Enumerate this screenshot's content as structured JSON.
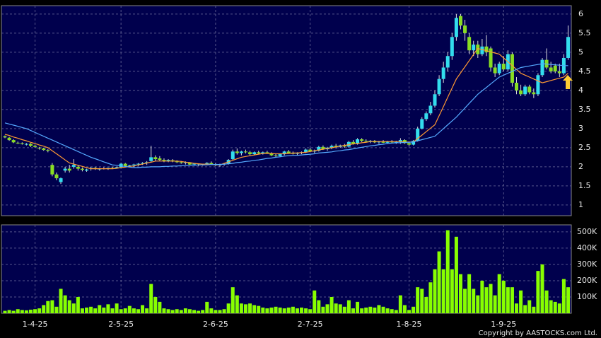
{
  "chart_data": {
    "type": "candlestick",
    "categories": [
      null,
      null,
      null,
      null,
      null,
      null,
      null,
      "1-4-25",
      null,
      null,
      null,
      null,
      null,
      null,
      null,
      null,
      null,
      null,
      null,
      null,
      null,
      null,
      null,
      null,
      null,
      null,
      null,
      "2-5-25",
      null,
      null,
      null,
      null,
      null,
      null,
      null,
      null,
      null,
      null,
      null,
      null,
      null,
      null,
      null,
      null,
      null,
      null,
      null,
      null,
      null,
      "2-6-25",
      null,
      null,
      null,
      null,
      null,
      null,
      null,
      null,
      null,
      null,
      null,
      null,
      null,
      null,
      null,
      null,
      null,
      null,
      null,
      null,
      null,
      "2-7-25",
      null,
      null,
      null,
      null,
      null,
      null,
      null,
      null,
      null,
      null,
      null,
      null,
      null,
      null,
      null,
      null,
      null,
      null,
      null,
      null,
      null,
      null,
      "1-8-25",
      null,
      null,
      null,
      null,
      null,
      null,
      null,
      null,
      null,
      null,
      null,
      null,
      null,
      null,
      null,
      null,
      null,
      null,
      null,
      null,
      null,
      "1-9-25",
      null,
      null,
      null,
      null,
      null,
      null,
      null,
      null,
      null,
      null,
      null,
      null,
      null,
      null,
      null
    ],
    "candles": [
      [
        2.8,
        2.82,
        2.75,
        2.77
      ],
      [
        2.76,
        2.78,
        2.68,
        2.7
      ],
      [
        2.7,
        2.72,
        2.62,
        2.64
      ],
      [
        2.63,
        2.66,
        2.6,
        2.62
      ],
      [
        2.62,
        2.64,
        2.58,
        2.6
      ],
      [
        2.58,
        2.62,
        2.56,
        2.6
      ],
      [
        2.6,
        2.62,
        2.52,
        2.55
      ],
      [
        2.55,
        2.58,
        2.5,
        2.52
      ],
      [
        2.5,
        2.52,
        2.45,
        2.48
      ],
      [
        2.48,
        2.5,
        2.42,
        2.44
      ],
      [
        2.44,
        2.46,
        2.38,
        2.42
      ],
      [
        2.05,
        2.1,
        1.75,
        1.8
      ],
      [
        1.8,
        1.85,
        1.65,
        1.7
      ],
      [
        1.6,
        1.72,
        1.55,
        1.7
      ],
      [
        1.9,
        2.0,
        1.85,
        1.95
      ],
      [
        1.95,
        2.05,
        1.85,
        1.9
      ],
      [
        2.0,
        2.2,
        1.95,
        2.05
      ],
      [
        2.0,
        2.05,
        1.9,
        1.95
      ],
      [
        1.95,
        1.98,
        1.88,
        1.92
      ],
      [
        1.9,
        1.95,
        1.87,
        1.93
      ],
      [
        1.95,
        2.0,
        1.9,
        1.97
      ],
      [
        1.97,
        2.0,
        1.92,
        1.95
      ],
      [
        1.93,
        1.97,
        1.9,
        1.96
      ],
      [
        1.96,
        1.99,
        1.93,
        1.95
      ],
      [
        1.95,
        1.98,
        1.92,
        1.97
      ],
      [
        1.97,
        2.0,
        1.94,
        1.96
      ],
      [
        1.96,
        2.0,
        1.95,
        1.99
      ],
      [
        1.99,
        2.1,
        1.97,
        2.08
      ],
      [
        2.08,
        2.1,
        2.0,
        2.02
      ],
      [
        2.02,
        2.05,
        1.98,
        2.04
      ],
      [
        2.04,
        2.08,
        2.0,
        2.06
      ],
      [
        2.06,
        2.1,
        2.02,
        2.08
      ],
      [
        2.08,
        2.12,
        2.05,
        2.1
      ],
      [
        2.1,
        2.15,
        2.05,
        2.12
      ],
      [
        2.15,
        2.55,
        2.12,
        2.25
      ],
      [
        2.25,
        2.3,
        2.15,
        2.2
      ],
      [
        2.22,
        2.28,
        2.15,
        2.18
      ],
      [
        2.18,
        2.22,
        2.12,
        2.15
      ],
      [
        2.15,
        2.2,
        2.12,
        2.18
      ],
      [
        2.17,
        2.2,
        2.12,
        2.14
      ],
      [
        2.14,
        2.17,
        2.1,
        2.12
      ],
      [
        2.12,
        2.15,
        2.08,
        2.1
      ],
      [
        2.1,
        2.14,
        2.06,
        2.12
      ],
      [
        2.1,
        2.12,
        2.05,
        2.06
      ],
      [
        2.06,
        2.1,
        2.03,
        2.08
      ],
      [
        2.06,
        2.08,
        2.02,
        2.05
      ],
      [
        2.05,
        2.08,
        2.03,
        2.07
      ],
      [
        2.07,
        2.12,
        2.05,
        2.1
      ],
      [
        2.1,
        2.14,
        2.05,
        2.06
      ],
      [
        2.06,
        2.1,
        2.02,
        2.04
      ],
      [
        2.04,
        2.08,
        2.0,
        2.06
      ],
      [
        2.06,
        2.1,
        2.03,
        2.08
      ],
      [
        2.08,
        2.2,
        2.06,
        2.18
      ],
      [
        2.2,
        2.45,
        2.18,
        2.4
      ],
      [
        2.4,
        2.48,
        2.32,
        2.36
      ],
      [
        2.36,
        2.42,
        2.3,
        2.4
      ],
      [
        2.4,
        2.45,
        2.35,
        2.38
      ],
      [
        2.38,
        2.42,
        2.3,
        2.33
      ],
      [
        2.33,
        2.4,
        2.3,
        2.38
      ],
      [
        2.38,
        2.42,
        2.33,
        2.35
      ],
      [
        2.35,
        2.4,
        2.32,
        2.38
      ],
      [
        2.38,
        2.42,
        2.34,
        2.36
      ],
      [
        2.36,
        2.38,
        2.28,
        2.3
      ],
      [
        2.3,
        2.34,
        2.26,
        2.28
      ],
      [
        2.28,
        2.35,
        2.26,
        2.33
      ],
      [
        2.33,
        2.42,
        2.3,
        2.4
      ],
      [
        2.4,
        2.44,
        2.34,
        2.36
      ],
      [
        2.36,
        2.4,
        2.32,
        2.34
      ],
      [
        2.34,
        2.38,
        2.3,
        2.36
      ],
      [
        2.36,
        2.4,
        2.33,
        2.38
      ],
      [
        2.38,
        2.48,
        2.36,
        2.45
      ],
      [
        2.45,
        2.5,
        2.38,
        2.4
      ],
      [
        2.4,
        2.45,
        2.36,
        2.42
      ],
      [
        2.42,
        2.55,
        2.4,
        2.52
      ],
      [
        2.52,
        2.56,
        2.44,
        2.46
      ],
      [
        2.46,
        2.52,
        2.42,
        2.5
      ],
      [
        2.5,
        2.58,
        2.46,
        2.55
      ],
      [
        2.55,
        2.6,
        2.48,
        2.52
      ],
      [
        2.52,
        2.58,
        2.5,
        2.56
      ],
      [
        2.56,
        2.6,
        2.5,
        2.53
      ],
      [
        2.53,
        2.68,
        2.5,
        2.65
      ],
      [
        2.65,
        2.7,
        2.58,
        2.6
      ],
      [
        2.6,
        2.75,
        2.58,
        2.72
      ],
      [
        2.72,
        2.75,
        2.65,
        2.68
      ],
      [
        2.68,
        2.72,
        2.64,
        2.66
      ],
      [
        2.66,
        2.7,
        2.62,
        2.68
      ],
      [
        2.68,
        2.7,
        2.62,
        2.64
      ],
      [
        2.64,
        2.68,
        2.6,
        2.66
      ],
      [
        2.66,
        2.7,
        2.62,
        2.63
      ],
      [
        2.63,
        2.68,
        2.6,
        2.66
      ],
      [
        2.66,
        2.7,
        2.62,
        2.64
      ],
      [
        2.64,
        2.68,
        2.6,
        2.65
      ],
      [
        2.65,
        2.75,
        2.6,
        2.7
      ],
      [
        2.7,
        2.72,
        2.6,
        2.62
      ],
      [
        2.62,
        2.65,
        2.55,
        2.58
      ],
      [
        2.58,
        2.7,
        2.56,
        2.68
      ],
      [
        2.68,
        3.05,
        2.66,
        3.0
      ],
      [
        3.0,
        3.3,
        2.98,
        3.25
      ],
      [
        3.25,
        3.45,
        3.2,
        3.4
      ],
      [
        3.4,
        3.7,
        3.35,
        3.6
      ],
      [
        3.6,
        4.0,
        3.55,
        3.9
      ],
      [
        3.9,
        4.4,
        3.85,
        4.3
      ],
      [
        4.3,
        4.75,
        4.2,
        4.6
      ],
      [
        4.6,
        5.0,
        4.5,
        4.9
      ],
      [
        4.9,
        5.5,
        4.8,
        5.4
      ],
      [
        5.4,
        6.0,
        5.3,
        5.9
      ],
      [
        5.95,
        6.0,
        5.6,
        5.7
      ],
      [
        5.7,
        5.85,
        5.3,
        5.5
      ],
      [
        5.4,
        5.5,
        4.95,
        5.05
      ],
      [
        5.05,
        5.3,
        4.9,
        5.2
      ],
      [
        5.2,
        5.3,
        4.85,
        4.95
      ],
      [
        4.95,
        5.35,
        4.9,
        5.15
      ],
      [
        5.15,
        5.45,
        4.9,
        5.0
      ],
      [
        5.1,
        5.15,
        4.5,
        4.6
      ],
      [
        4.6,
        4.7,
        4.35,
        4.45
      ],
      [
        4.45,
        4.75,
        4.4,
        4.7
      ],
      [
        4.7,
        4.9,
        4.5,
        4.55
      ],
      [
        4.55,
        5.05,
        4.5,
        4.95
      ],
      [
        4.95,
        5.0,
        4.1,
        4.2
      ],
      [
        4.2,
        4.35,
        3.9,
        4.0
      ],
      [
        4.0,
        4.15,
        3.85,
        3.9
      ],
      [
        3.9,
        4.15,
        3.85,
        4.1
      ],
      [
        4.1,
        4.15,
        3.9,
        3.95
      ],
      [
        3.95,
        4.05,
        3.8,
        3.9
      ],
      [
        3.9,
        4.45,
        3.85,
        4.4
      ],
      [
        4.4,
        4.85,
        4.35,
        4.8
      ],
      [
        4.8,
        5.1,
        4.55,
        4.6
      ],
      [
        4.6,
        4.75,
        4.45,
        4.5
      ],
      [
        4.65,
        4.7,
        4.45,
        4.5
      ],
      [
        4.5,
        4.7,
        4.35,
        4.45
      ],
      [
        4.45,
        4.95,
        4.4,
        4.85
      ],
      [
        4.85,
        5.7,
        4.8,
        5.4
      ]
    ],
    "up_color": "#33ddee",
    "down_color": "#88dd22",
    "ma_series": [
      {
        "color": "#ff9933",
        "values": [
          2.85,
          2.82,
          2.78,
          2.75,
          2.71,
          2.68,
          2.64,
          2.61,
          2.57,
          2.54,
          2.5,
          2.42,
          2.34,
          2.26,
          2.18,
          2.1,
          2.07,
          2.04,
          2.01,
          1.98,
          1.95,
          1.95,
          1.95,
          1.95,
          1.95,
          1.95,
          1.96,
          1.98,
          1.99,
          2.01,
          2.02,
          2.05,
          2.07,
          2.1,
          2.12,
          2.15,
          2.15,
          2.15,
          2.15,
          2.15,
          2.15,
          2.14,
          2.12,
          2.11,
          2.09,
          2.08,
          2.07,
          2.07,
          2.06,
          2.06,
          2.05,
          2.09,
          2.13,
          2.17,
          2.21,
          2.25,
          2.27,
          2.29,
          2.31,
          2.33,
          2.35,
          2.35,
          2.35,
          2.34,
          2.34,
          2.34,
          2.35,
          2.36,
          2.36,
          2.37,
          2.38,
          2.4,
          2.42,
          2.44,
          2.46,
          2.48,
          2.5,
          2.52,
          2.54,
          2.56,
          2.58,
          2.6,
          2.61,
          2.63,
          2.64,
          2.66,
          2.66,
          2.66,
          2.66,
          2.66,
          2.66,
          2.66,
          2.66,
          2.65,
          2.65,
          2.65,
          2.74,
          2.83,
          2.92,
          3.01,
          3.1,
          3.34,
          3.58,
          3.82,
          4.06,
          4.3,
          4.46,
          4.62,
          4.78,
          4.94,
          5.1,
          5.07,
          5.04,
          5.01,
          4.98,
          4.95,
          4.85,
          4.75,
          4.65,
          4.55,
          4.45,
          4.4,
          4.35,
          4.3,
          4.25,
          4.2,
          4.23,
          4.26,
          4.29,
          4.32,
          4.35,
          4.45
        ]
      },
      {
        "color": "#55aaff",
        "values": [
          3.15,
          3.12,
          3.09,
          3.06,
          3.03,
          3.0,
          2.95,
          2.9,
          2.85,
          2.8,
          2.75,
          2.7,
          2.65,
          2.6,
          2.55,
          2.5,
          2.45,
          2.4,
          2.35,
          2.3,
          2.25,
          2.21,
          2.17,
          2.13,
          2.09,
          2.05,
          2.04,
          2.02,
          2.01,
          1.99,
          1.98,
          1.98,
          1.99,
          1.99,
          2.0,
          2.0,
          2.0,
          2.01,
          2.01,
          2.02,
          2.02,
          2.03,
          2.03,
          2.04,
          2.04,
          2.05,
          2.05,
          2.05,
          2.06,
          2.06,
          2.06,
          2.07,
          2.08,
          2.09,
          2.11,
          2.12,
          2.14,
          2.15,
          2.17,
          2.18,
          2.2,
          2.22,
          2.23,
          2.25,
          2.26,
          2.28,
          2.29,
          2.3,
          2.3,
          2.31,
          2.32,
          2.33,
          2.34,
          2.36,
          2.37,
          2.38,
          2.39,
          2.41,
          2.42,
          2.44,
          2.45,
          2.47,
          2.49,
          2.51,
          2.53,
          2.55,
          2.56,
          2.58,
          2.59,
          2.61,
          2.62,
          2.63,
          2.63,
          2.64,
          2.64,
          2.65,
          2.68,
          2.71,
          2.74,
          2.77,
          2.8,
          2.9,
          3.0,
          3.1,
          3.2,
          3.3,
          3.42,
          3.54,
          3.66,
          3.78,
          3.9,
          3.99,
          4.08,
          4.17,
          4.26,
          4.35,
          4.4,
          4.45,
          4.5,
          4.55,
          4.6,
          4.62,
          4.64,
          4.66,
          4.68,
          4.7,
          4.69,
          4.68,
          4.67,
          4.66,
          4.65,
          4.65
        ]
      }
    ],
    "ylim": [
      0.72,
      6.22
    ],
    "yticks": [
      1,
      1.5,
      2,
      2.5,
      3,
      3.5,
      4,
      4.5,
      5,
      5.5,
      6
    ],
    "volume": [
      15000,
      20000,
      15000,
      25000,
      20000,
      18000,
      22000,
      25000,
      30000,
      50000,
      75000,
      80000,
      40000,
      150000,
      110000,
      80000,
      60000,
      100000,
      30000,
      35000,
      40000,
      30000,
      50000,
      35000,
      55000,
      30000,
      60000,
      25000,
      30000,
      45000,
      30000,
      25000,
      50000,
      30000,
      180000,
      100000,
      70000,
      30000,
      25000,
      20000,
      25000,
      20000,
      30000,
      25000,
      20000,
      15000,
      20000,
      70000,
      30000,
      20000,
      20000,
      25000,
      60000,
      160000,
      110000,
      60000,
      55000,
      60000,
      50000,
      45000,
      35000,
      30000,
      35000,
      40000,
      35000,
      30000,
      35000,
      40000,
      30000,
      35000,
      30000,
      25000,
      140000,
      80000,
      40000,
      55000,
      100000,
      60000,
      55000,
      40000,
      80000,
      30000,
      70000,
      30000,
      35000,
      40000,
      35000,
      50000,
      40000,
      30000,
      25000,
      20000,
      110000,
      50000,
      20000,
      40000,
      160000,
      150000,
      100000,
      190000,
      270000,
      380000,
      270000,
      510000,
      270000,
      470000,
      240000,
      150000,
      240000,
      150000,
      110000,
      200000,
      160000,
      180000,
      110000,
      240000,
      200000,
      160000,
      160000,
      60000,
      140000,
      50000,
      80000,
      40000,
      260000,
      300000,
      140000,
      80000,
      70000,
      60000,
      210000,
      160000
    ],
    "volume_color": "#88ff00",
    "volume_ylim": [
      0,
      543000
    ],
    "volume_yticks": [
      {
        "value": 100000,
        "label": "100K"
      },
      {
        "value": 200000,
        "label": "200K"
      },
      {
        "value": 300000,
        "label": "300K"
      },
      {
        "value": 400000,
        "label": "400K"
      },
      {
        "value": 500000,
        "label": "500K"
      }
    ],
    "grid": true,
    "copyright": "Copyright by AASTOCKS.com Ltd."
  }
}
